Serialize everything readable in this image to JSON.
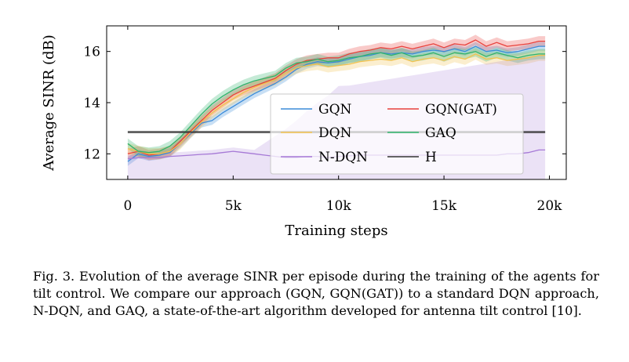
{
  "chart_data": {
    "type": "line",
    "xlabel": "Training steps",
    "ylabel": "Average SINR (dB)",
    "xlim": [
      -1000,
      20800
    ],
    "ylim": [
      11.0,
      17.0
    ],
    "xticks": [
      0,
      5000,
      10000,
      15000,
      20000
    ],
    "xtick_labels": [
      "0",
      "5k",
      "10k",
      "15k",
      "20k"
    ],
    "yticks": [
      12,
      14,
      16
    ],
    "ytick_labels": [
      "12",
      "14",
      "16"
    ],
    "grid": false,
    "legend_position": "center-right",
    "x": [
      0,
      500,
      1000,
      1500,
      2000,
      2500,
      3000,
      3500,
      4000,
      4500,
      5000,
      5500,
      6000,
      6500,
      7000,
      7500,
      8000,
      8500,
      9000,
      9500,
      10000,
      10500,
      11000,
      11500,
      12000,
      12500,
      13000,
      13500,
      14000,
      14500,
      15000,
      15500,
      16000,
      16500,
      17000,
      17500,
      18000,
      18500,
      19000,
      19500,
      19800
    ],
    "series": [
      {
        "name": "GQN",
        "color": "#3b8bd8",
        "values": [
          11.7,
          12.0,
          11.9,
          11.95,
          12.05,
          12.4,
          12.8,
          13.2,
          13.3,
          13.6,
          13.85,
          14.1,
          14.35,
          14.55,
          14.75,
          15.0,
          15.3,
          15.5,
          15.6,
          15.55,
          15.6,
          15.7,
          15.8,
          15.85,
          15.95,
          15.9,
          15.95,
          15.9,
          16.0,
          16.05,
          16.0,
          16.1,
          16.0,
          16.2,
          16.0,
          16.05,
          15.95,
          16.0,
          16.1,
          16.2,
          16.2
        ]
      },
      {
        "name": "GQN(GAT)",
        "color": "#e8413c",
        "values": [
          12.0,
          12.1,
          11.95,
          12.0,
          12.1,
          12.5,
          12.9,
          13.3,
          13.7,
          14.0,
          14.3,
          14.5,
          14.65,
          14.8,
          14.95,
          15.25,
          15.5,
          15.65,
          15.7,
          15.75,
          15.75,
          15.9,
          16.0,
          16.05,
          16.15,
          16.1,
          16.2,
          16.1,
          16.2,
          16.3,
          16.15,
          16.3,
          16.25,
          16.45,
          16.2,
          16.35,
          16.2,
          16.25,
          16.3,
          16.4,
          16.4
        ]
      },
      {
        "name": "DQN",
        "color": "#f2c24e",
        "values": [
          12.2,
          12.1,
          12.0,
          12.0,
          12.1,
          12.4,
          12.85,
          13.25,
          13.6,
          13.9,
          14.15,
          14.4,
          14.6,
          14.75,
          14.9,
          15.15,
          15.35,
          15.45,
          15.5,
          15.4,
          15.45,
          15.5,
          15.6,
          15.65,
          15.7,
          15.65,
          15.75,
          15.6,
          15.7,
          15.75,
          15.65,
          15.8,
          15.7,
          15.9,
          15.7,
          15.75,
          15.65,
          15.7,
          15.75,
          15.85,
          15.85
        ]
      },
      {
        "name": "GAQ",
        "color": "#2fb36b",
        "values": [
          12.4,
          12.1,
          12.05,
          12.1,
          12.3,
          12.65,
          13.1,
          13.55,
          13.95,
          14.25,
          14.5,
          14.7,
          14.85,
          14.95,
          15.05,
          15.35,
          15.55,
          15.6,
          15.7,
          15.6,
          15.65,
          15.75,
          15.8,
          15.9,
          15.95,
          15.85,
          15.95,
          15.8,
          15.85,
          15.95,
          15.8,
          15.95,
          15.9,
          16.0,
          15.8,
          15.95,
          15.85,
          15.75,
          15.85,
          15.9,
          15.9
        ]
      },
      {
        "name": "N-DQN",
        "color": "#a679d6",
        "values": [
          11.8,
          11.85,
          11.85,
          11.85,
          11.9,
          11.92,
          11.95,
          11.98,
          12.0,
          12.05,
          12.1,
          12.05,
          12.0,
          11.95,
          11.9,
          11.85,
          11.85,
          11.9,
          11.9,
          11.85,
          11.9,
          11.92,
          11.95,
          11.95,
          11.95,
          11.95,
          11.95,
          11.95,
          11.95,
          11.95,
          11.95,
          11.95,
          11.95,
          11.95,
          11.95,
          11.95,
          12.0,
          12.0,
          12.05,
          12.15,
          12.15
        ]
      },
      {
        "name": "H",
        "color": "#333333",
        "values": [
          12.85,
          12.85,
          12.85,
          12.85,
          12.85,
          12.85,
          12.85,
          12.85,
          12.85,
          12.85,
          12.85,
          12.85,
          12.85,
          12.85,
          12.85,
          12.85,
          12.85,
          12.85,
          12.85,
          12.85,
          12.85,
          12.85,
          12.85,
          12.85,
          12.85,
          12.85,
          12.85,
          12.85,
          12.85,
          12.85,
          12.85,
          12.85,
          12.85,
          12.85,
          12.85,
          12.85,
          12.85,
          12.85,
          12.85,
          12.85,
          12.85
        ]
      }
    ]
  },
  "legend": {
    "items": [
      "GQN",
      "GQN(GAT)",
      "DQN",
      "GAQ",
      "N-DQN",
      "H"
    ]
  },
  "caption": "Fig. 3.  Evolution of the average SINR per episode during the training of the agents for tilt control. We compare our approach (GQN, GQN(GAT)) to a standard DQN approach, N-DQN, and GAQ, a state-of-the-art algorithm developed for antenna tilt control [10]."
}
